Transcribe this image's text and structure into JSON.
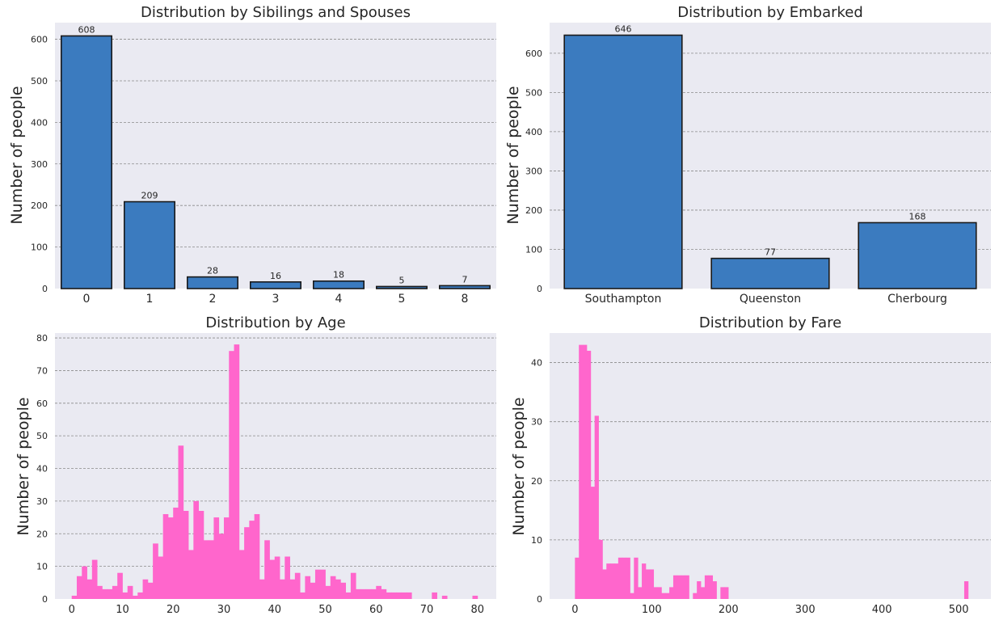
{
  "chart_data": [
    {
      "id": "sibsp",
      "type": "bar",
      "title": "Distribution by Sibilings and Spouses",
      "ylabel": "Number of people",
      "xlabel": "",
      "categories": [
        "0",
        "1",
        "2",
        "3",
        "4",
        "5",
        "8"
      ],
      "values": [
        608,
        209,
        28,
        16,
        18,
        5,
        7
      ],
      "value_labels": [
        "608",
        "209",
        "28",
        "16",
        "18",
        "5",
        "7"
      ],
      "ylim": [
        0,
        640
      ],
      "yticks": [
        0,
        100,
        200,
        300,
        400,
        500,
        600
      ],
      "grid": true,
      "color": "#3b7bbf"
    },
    {
      "id": "embarked",
      "type": "bar",
      "title": "Distribution by Embarked",
      "ylabel": "Number of people",
      "xlabel": "",
      "categories": [
        "Southampton",
        "Queenston",
        "Cherbourg"
      ],
      "values": [
        646,
        77,
        168
      ],
      "value_labels": [
        "646",
        "77",
        "168"
      ],
      "ylim": [
        0,
        678
      ],
      "yticks": [
        0,
        100,
        200,
        300,
        400,
        500,
        600
      ],
      "grid": true,
      "color": "#3b7bbf"
    },
    {
      "id": "age",
      "type": "bar",
      "title": "Distribution by Age",
      "ylabel": "Number of people",
      "xlabel": "",
      "bin_start": 0,
      "bin_width": 1,
      "values": [
        1,
        7,
        10,
        6,
        12,
        4,
        3,
        3,
        4,
        8,
        2,
        4,
        1,
        2,
        6,
        5,
        17,
        13,
        26,
        25,
        28,
        47,
        27,
        15,
        30,
        27,
        18,
        18,
        25,
        20,
        25,
        76,
        78,
        15,
        22,
        24,
        26,
        6,
        18,
        12,
        13,
        6,
        13,
        6,
        8,
        2,
        7,
        5,
        9,
        9,
        4,
        7,
        6,
        5,
        2,
        8,
        3,
        3,
        3,
        3,
        4,
        3,
        2,
        2,
        2,
        2,
        2,
        0,
        0,
        0,
        0,
        2,
        0,
        1,
        0,
        0,
        0,
        0,
        0,
        1
      ],
      "xlim": [
        -3.3,
        83.7
      ],
      "ylim": [
        0,
        81.5
      ],
      "xticks": [
        0,
        10,
        20,
        30,
        40,
        50,
        60,
        70,
        80
      ],
      "yticks": [
        0,
        10,
        20,
        30,
        40,
        50,
        60,
        70,
        80
      ],
      "grid": true,
      "color": "#ff66cc"
    },
    {
      "id": "fare",
      "type": "bar",
      "title": "Distribution by Fare",
      "ylabel": "Number of people",
      "xlabel": "",
      "bin_start": 0,
      "bin_width": 5.1233,
      "values": [
        7,
        43,
        43,
        42,
        19,
        31,
        10,
        5,
        6,
        6,
        6,
        7,
        7,
        7,
        1,
        7,
        2,
        6,
        5,
        5,
        2,
        2,
        1,
        1,
        2,
        4,
        4,
        4,
        4,
        0,
        1,
        3,
        2,
        4,
        4,
        3,
        0,
        2,
        2,
        0,
        0,
        0,
        0,
        0,
        0,
        0,
        0,
        0,
        0,
        0,
        0,
        0,
        0,
        0,
        0,
        0,
        0,
        0,
        0,
        0,
        0,
        0,
        0,
        0,
        0,
        0,
        0,
        0,
        0,
        0,
        0,
        0,
        0,
        0,
        0,
        0,
        0,
        0,
        0,
        0,
        0,
        0,
        0,
        0,
        0,
        0,
        0,
        0,
        0,
        0,
        0,
        0,
        0,
        0,
        0,
        0,
        0,
        0,
        0,
        3
      ],
      "xlim": [
        -33,
        542
      ],
      "ylim": [
        0,
        45
      ],
      "xticks": [
        0,
        100,
        200,
        300,
        400,
        500
      ],
      "yticks": [
        0,
        10,
        20,
        30,
        40
      ],
      "grid": true,
      "color": "#ff66cc"
    }
  ]
}
